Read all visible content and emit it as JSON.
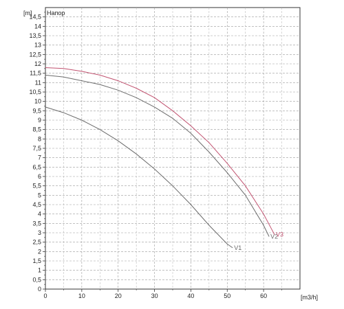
{
  "chart_data": {
    "type": "line",
    "title": "",
    "ylabel_unit": "[m]",
    "ylabel": "Напор",
    "xlabel": "[m3/h]",
    "xlim": [
      0,
      70
    ],
    "ylim": [
      0,
      15
    ],
    "grid": true,
    "x_ticks": [
      0,
      10,
      20,
      30,
      40,
      50,
      60
    ],
    "y_ticks": [
      "0",
      "0,5",
      "1",
      "1,5",
      "2",
      "2,5",
      "3",
      "3,5",
      "4",
      "4,5",
      "5",
      "5,5",
      "6",
      "6,5",
      "7",
      "7,5",
      "8",
      "8,5",
      "9",
      "9,5",
      "10",
      "10,5",
      "11",
      "11,5",
      "12",
      "12,5",
      "13",
      "13,5",
      "14",
      "14,5"
    ],
    "y_tick_values": [
      0,
      0.5,
      1,
      1.5,
      2,
      2.5,
      3,
      3.5,
      4,
      4.5,
      5,
      5.5,
      6,
      6.5,
      7,
      7.5,
      8,
      8.5,
      9,
      9.5,
      10,
      10.5,
      11,
      11.5,
      12,
      12.5,
      13,
      13.5,
      14,
      14.5
    ],
    "series": [
      {
        "name": "V1",
        "color": "#6b6b6b",
        "x": [
          0,
          5,
          10,
          15,
          20,
          25,
          30,
          35,
          40,
          45,
          50,
          51.5
        ],
        "y": [
          9.7,
          9.4,
          9.0,
          8.5,
          7.9,
          7.2,
          6.4,
          5.5,
          4.5,
          3.4,
          2.4,
          2.2
        ]
      },
      {
        "name": "V2",
        "color": "#6b6b6b",
        "x": [
          0,
          5,
          10,
          15,
          20,
          25,
          30,
          35,
          40,
          45,
          50,
          55,
          60,
          61.5
        ],
        "y": [
          11.4,
          11.3,
          11.1,
          10.9,
          10.6,
          10.2,
          9.7,
          9.1,
          8.3,
          7.3,
          6.2,
          5.0,
          3.4,
          2.8
        ]
      },
      {
        "name": "V3",
        "color": "#c0506e",
        "x": [
          0,
          5,
          10,
          15,
          20,
          25,
          30,
          35,
          40,
          45,
          50,
          55,
          60,
          63
        ],
        "y": [
          11.8,
          11.75,
          11.6,
          11.4,
          11.1,
          10.7,
          10.2,
          9.5,
          8.7,
          7.8,
          6.7,
          5.5,
          4.0,
          2.9
        ]
      }
    ]
  }
}
